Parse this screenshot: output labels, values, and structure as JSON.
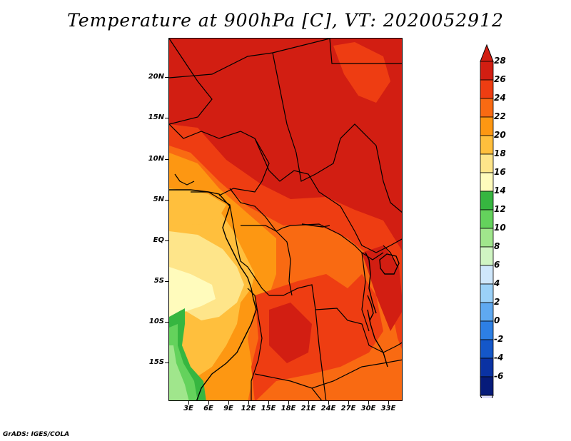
{
  "title": "Temperature at 900hPa [C], VT: 2020052912",
  "credit": "GrADS: IGES/COLA",
  "map": {
    "lat_ticks": [
      "20N",
      "15N",
      "10N",
      "5N",
      "EQ",
      "5S",
      "10S",
      "15S"
    ],
    "lon_ticks": [
      "3E",
      "6E",
      "9E",
      "12E",
      "15E",
      "18E",
      "21E",
      "24E",
      "27E",
      "30E",
      "33E"
    ],
    "variable": "Temperature",
    "level": "900hPa",
    "units": "C",
    "valid_time": "2020052912"
  },
  "colorbar": {
    "labels": [
      "28",
      "26",
      "24",
      "22",
      "20",
      "18",
      "16",
      "14",
      "12",
      "10",
      "8",
      "6",
      "4",
      "2",
      "0",
      "-2",
      "-4",
      "-6"
    ],
    "colors": [
      "#d21e12",
      "#ee3d12",
      "#f96a12",
      "#fd9712",
      "#ffbf3d",
      "#fee58a",
      "#fffbbc",
      "#36b640",
      "#64d25c",
      "#a0e68c",
      "#d0f5c3",
      "#cfe7fb",
      "#9bd1f8",
      "#5fa9f1",
      "#2d7fe4",
      "#1457c9",
      "#0a32a3",
      "#061b7a",
      "#0a0a5a"
    ],
    "upper_arrow_color": "#d21e12",
    "lower_arrow_color": "#dcdcfa"
  }
}
